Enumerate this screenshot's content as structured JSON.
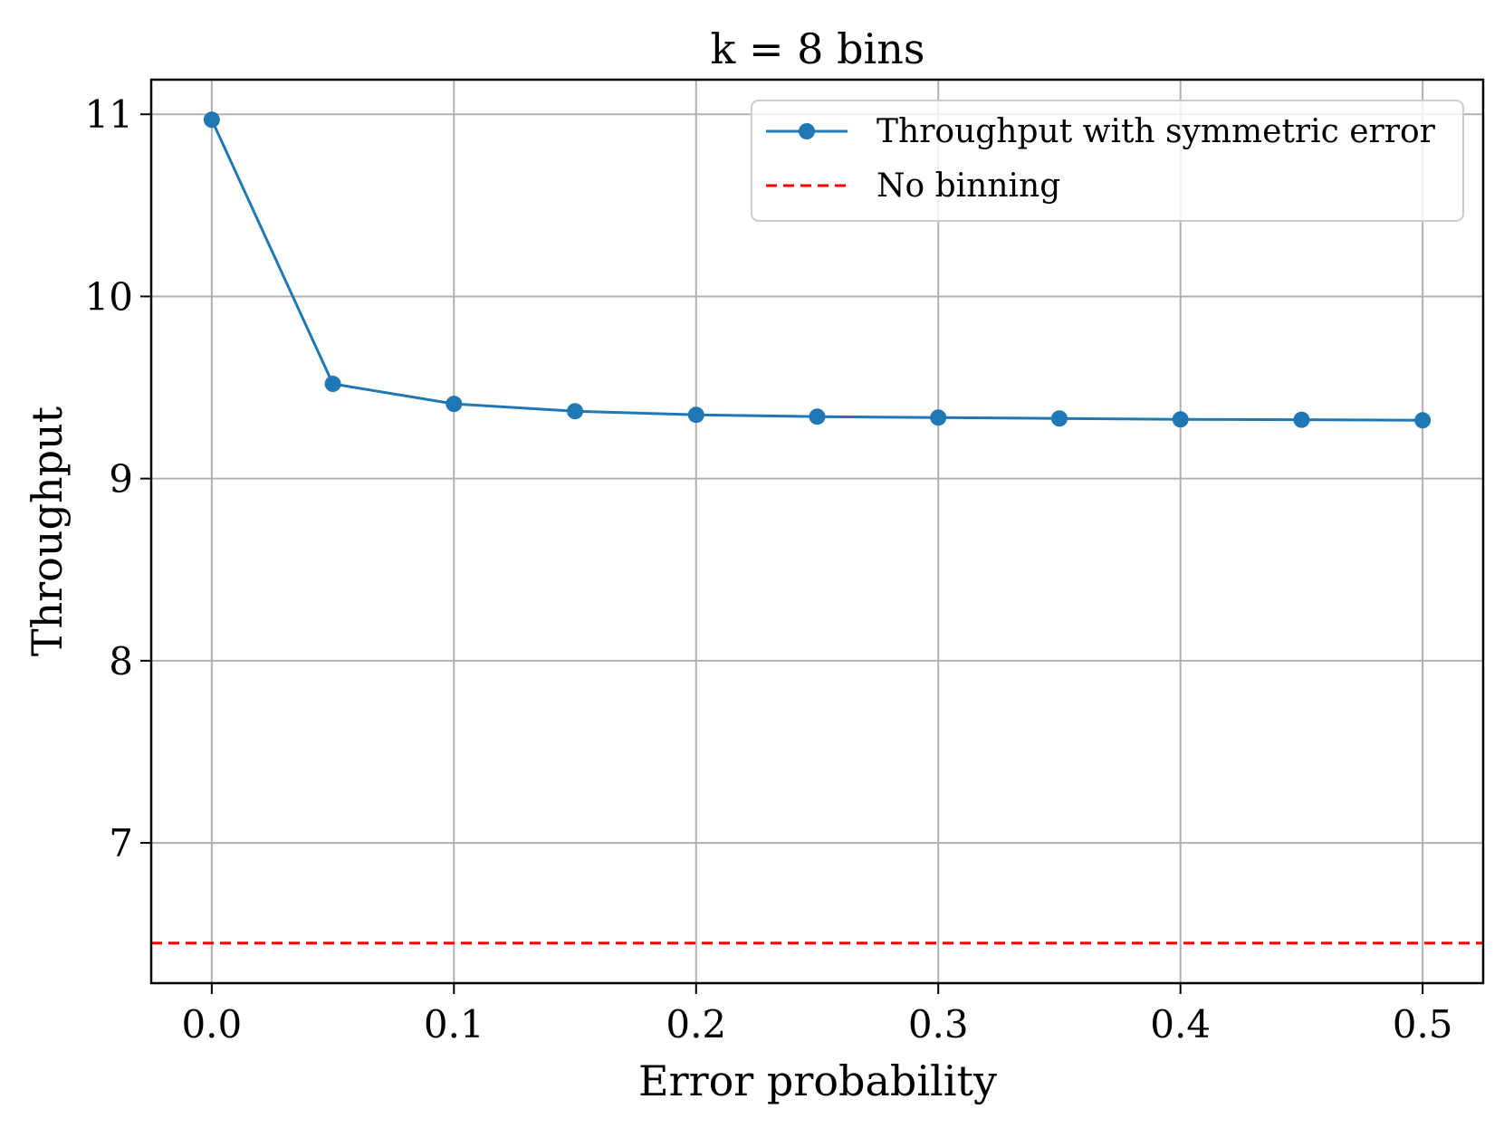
{
  "chart_data": {
    "type": "line",
    "title": "k = 8 bins",
    "xlabel": "Error probability",
    "ylabel": "Throughput",
    "xlim": [
      -0.025,
      0.525
    ],
    "ylim": [
      6.23,
      11.19
    ],
    "xticks": [
      0.0,
      0.1,
      0.2,
      0.3,
      0.4,
      0.5
    ],
    "xtick_labels": [
      "0.0",
      "0.1",
      "0.2",
      "0.3",
      "0.4",
      "0.5"
    ],
    "yticks": [
      7,
      8,
      9,
      10,
      11
    ],
    "ytick_labels": [
      "7",
      "8",
      "9",
      "10",
      "11"
    ],
    "grid": true,
    "legend_position": "top-right",
    "series": [
      {
        "name": "Throughput with symmetric error",
        "color": "#1f77b4",
        "style": "solid-with-markers",
        "x": [
          0.0,
          0.05,
          0.1,
          0.15,
          0.2,
          0.25,
          0.3,
          0.35,
          0.4,
          0.45,
          0.5
        ],
        "y": [
          10.97,
          9.52,
          9.41,
          9.37,
          9.35,
          9.34,
          9.335,
          9.33,
          9.325,
          9.323,
          9.32
        ]
      },
      {
        "name": "No binning",
        "color": "#ff0000",
        "style": "dashed-horizontal",
        "y_value": 6.45
      }
    ]
  }
}
